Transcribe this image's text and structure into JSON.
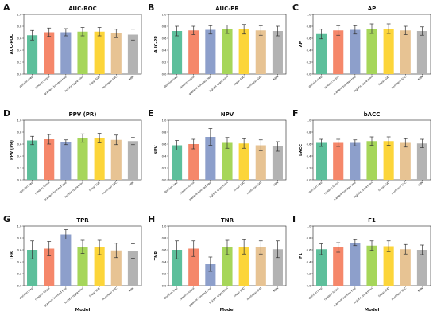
{
  "chart_data": {
    "type": "bar",
    "categories": [
      "decision tree",
      "random forest",
      "gradient boosted tree",
      "logistic regression",
      "linear SVC",
      "nonlinear SVC",
      "KNN"
    ],
    "colors": [
      "#5dbf9b",
      "#f5876a",
      "#8d9fcb",
      "#a6d65a",
      "#fcd53a",
      "#e7c393",
      "#b3b3b3"
    ],
    "xlabel": "Model",
    "ylim": [
      0,
      1
    ],
    "yticks": [
      "0.0",
      "0.2",
      "0.4",
      "0.6",
      "0.8",
      "1.0"
    ],
    "grid": false,
    "legend": "none",
    "panels": [
      {
        "letter": "A",
        "title": "AUC-ROC",
        "ylabel": "AUC-ROC",
        "values": [
          0.65,
          0.7,
          0.7,
          0.71,
          0.71,
          0.68,
          0.66
        ],
        "errors": [
          0.08,
          0.07,
          0.06,
          0.07,
          0.07,
          0.07,
          0.09
        ]
      },
      {
        "letter": "B",
        "title": "AUC-PR",
        "ylabel": "AUC-PR",
        "values": [
          0.72,
          0.73,
          0.74,
          0.75,
          0.75,
          0.73,
          0.72
        ],
        "errors": [
          0.08,
          0.07,
          0.07,
          0.07,
          0.08,
          0.08,
          0.08
        ]
      },
      {
        "letter": "C",
        "title": "AP",
        "ylabel": "AP",
        "values": [
          0.67,
          0.73,
          0.74,
          0.76,
          0.76,
          0.73,
          0.72
        ],
        "errors": [
          0.08,
          0.08,
          0.07,
          0.08,
          0.08,
          0.07,
          0.07
        ]
      },
      {
        "letter": "D",
        "title": "PPV (PR)",
        "ylabel": "PPV (PR)",
        "values": [
          0.66,
          0.68,
          0.63,
          0.7,
          0.7,
          0.67,
          0.65
        ],
        "errors": [
          0.07,
          0.08,
          0.04,
          0.07,
          0.08,
          0.08,
          0.06
        ]
      },
      {
        "letter": "E",
        "title": "NPV",
        "ylabel": "NPV",
        "values": [
          0.58,
          0.6,
          0.72,
          0.62,
          0.61,
          0.58,
          0.56
        ],
        "errors": [
          0.08,
          0.08,
          0.14,
          0.09,
          0.08,
          0.09,
          0.08
        ]
      },
      {
        "letter": "F",
        "title": "bACC",
        "ylabel": "bACC",
        "values": [
          0.62,
          0.62,
          0.62,
          0.65,
          0.65,
          0.62,
          0.61
        ],
        "errors": [
          0.06,
          0.06,
          0.05,
          0.07,
          0.07,
          0.07,
          0.07
        ]
      },
      {
        "letter": "G",
        "title": "TPR",
        "ylabel": "TPR",
        "values": [
          0.6,
          0.62,
          0.86,
          0.65,
          0.64,
          0.59,
          0.58
        ],
        "errors": [
          0.15,
          0.12,
          0.08,
          0.11,
          0.12,
          0.12,
          0.12
        ]
      },
      {
        "letter": "H",
        "title": "TNR",
        "ylabel": "TNR",
        "values": [
          0.6,
          0.62,
          0.36,
          0.64,
          0.65,
          0.64,
          0.61
        ],
        "errors": [
          0.15,
          0.13,
          0.12,
          0.12,
          0.12,
          0.11,
          0.14
        ]
      },
      {
        "letter": "I",
        "title": "F1",
        "ylabel": "F1",
        "values": [
          0.61,
          0.64,
          0.72,
          0.67,
          0.66,
          0.61,
          0.6
        ],
        "errors": [
          0.09,
          0.08,
          0.05,
          0.08,
          0.09,
          0.08,
          0.08
        ]
      }
    ]
  }
}
